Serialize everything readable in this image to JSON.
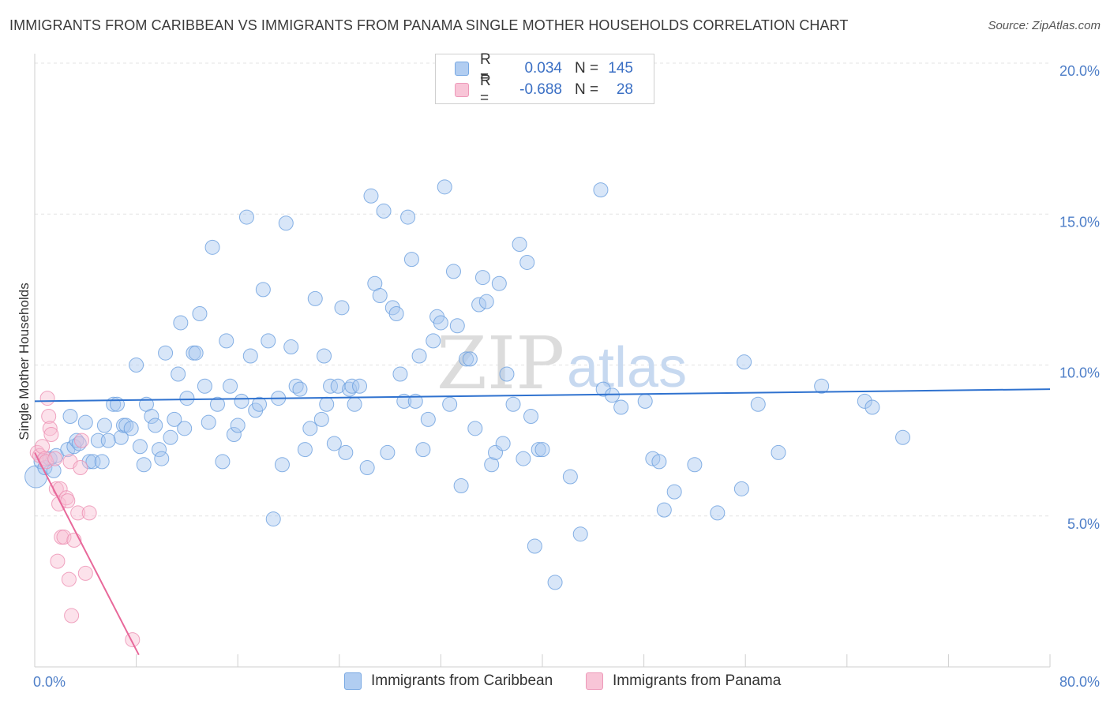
{
  "header": {
    "title": "IMMIGRANTS FROM CARIBBEAN VS IMMIGRANTS FROM PANAMA SINGLE MOTHER HOUSEHOLDS CORRELATION CHART",
    "source": "Source: ZipAtlas.com"
  },
  "legend": {
    "rows": [
      {
        "r_label": "R =",
        "r_value": "0.034",
        "n_label": "N =",
        "n_value": "145",
        "color": "#6a9fdf"
      },
      {
        "r_label": "R =",
        "r_value": "-0.688",
        "n_label": "N =",
        "n_value": "28",
        "color": "#f08cb0"
      }
    ],
    "series_names": [
      "Immigrants from Caribbean",
      "Immigrants from Panama"
    ]
  },
  "watermark": {
    "zip": "ZIP",
    "atlas": "atlas"
  },
  "colors": {
    "caribbean_fill": "#a9c8f0",
    "caribbean_stroke": "#6a9fdf",
    "caribbean_line": "#2f72cf",
    "panama_fill": "#f8bfd3",
    "panama_stroke": "#ec8fb2",
    "panama_line": "#e8689a",
    "axis_text": "#4f7fc8"
  },
  "chart_data": {
    "type": "scatter",
    "title": "IMMIGRANTS FROM CARIBBEAN VS IMMIGRANTS FROM PANAMA SINGLE MOTHER HOUSEHOLDS CORRELATION CHART",
    "xlabel": "",
    "ylabel": "Single Mother Households",
    "xlim": [
      0,
      80
    ],
    "ylim": [
      0,
      20
    ],
    "y_ticks": [
      5,
      10,
      15,
      20
    ],
    "y_tick_labels": [
      "5.0%",
      "10.0%",
      "15.0%",
      "20.0%"
    ],
    "x_tick_labels": [
      "0.0%",
      "80.0%"
    ],
    "legend_position": "top-center",
    "series": [
      {
        "name": "Immigrants from Caribbean",
        "trend": {
          "x": [
            0,
            80
          ],
          "y": [
            8.8,
            9.2
          ]
        },
        "points": [
          [
            0.1,
            6.3
          ],
          [
            0.5,
            6.8
          ],
          [
            0.8,
            6.6
          ],
          [
            1.2,
            6.9
          ],
          [
            1.5,
            6.5
          ],
          [
            1.7,
            7.0
          ],
          [
            2.6,
            7.2
          ],
          [
            2.8,
            8.3
          ],
          [
            3.1,
            7.3
          ],
          [
            3.3,
            7.5
          ],
          [
            3.5,
            7.4
          ],
          [
            4.0,
            8.1
          ],
          [
            4.3,
            6.8
          ],
          [
            4.6,
            6.8
          ],
          [
            5.0,
            7.5
          ],
          [
            5.3,
            6.8
          ],
          [
            5.5,
            8.0
          ],
          [
            5.8,
            7.5
          ],
          [
            6.2,
            8.7
          ],
          [
            6.5,
            8.7
          ],
          [
            6.8,
            7.6
          ],
          [
            7.0,
            8.0
          ],
          [
            7.2,
            8.0
          ],
          [
            7.6,
            7.9
          ],
          [
            8.0,
            10.0
          ],
          [
            8.3,
            7.3
          ],
          [
            8.6,
            6.7
          ],
          [
            8.8,
            8.7
          ],
          [
            9.2,
            8.3
          ],
          [
            9.5,
            8.0
          ],
          [
            9.8,
            7.2
          ],
          [
            10.0,
            6.9
          ],
          [
            10.3,
            10.4
          ],
          [
            10.7,
            7.6
          ],
          [
            11.0,
            8.2
          ],
          [
            11.3,
            9.7
          ],
          [
            11.5,
            11.4
          ],
          [
            11.8,
            7.9
          ],
          [
            12.0,
            8.9
          ],
          [
            12.5,
            10.4
          ],
          [
            12.7,
            10.4
          ],
          [
            13.0,
            11.7
          ],
          [
            13.4,
            9.3
          ],
          [
            13.7,
            8.1
          ],
          [
            14.0,
            13.9
          ],
          [
            14.4,
            8.7
          ],
          [
            14.8,
            6.8
          ],
          [
            15.1,
            10.8
          ],
          [
            15.4,
            9.3
          ],
          [
            15.7,
            7.7
          ],
          [
            16.0,
            8.0
          ],
          [
            16.3,
            8.8
          ],
          [
            16.7,
            14.9
          ],
          [
            17.0,
            10.3
          ],
          [
            17.4,
            8.5
          ],
          [
            17.7,
            8.7
          ],
          [
            18.0,
            12.5
          ],
          [
            18.4,
            10.8
          ],
          [
            18.8,
            4.9
          ],
          [
            19.2,
            8.9
          ],
          [
            19.5,
            6.7
          ],
          [
            19.8,
            14.7
          ],
          [
            20.2,
            10.6
          ],
          [
            20.6,
            9.3
          ],
          [
            20.9,
            9.2
          ],
          [
            21.3,
            7.2
          ],
          [
            21.7,
            7.9
          ],
          [
            22.1,
            12.2
          ],
          [
            22.6,
            8.2
          ],
          [
            22.8,
            10.3
          ],
          [
            23.0,
            8.7
          ],
          [
            23.3,
            9.3
          ],
          [
            23.6,
            7.4
          ],
          [
            23.9,
            9.3
          ],
          [
            24.2,
            11.9
          ],
          [
            24.5,
            7.1
          ],
          [
            24.8,
            9.2
          ],
          [
            25.0,
            9.3
          ],
          [
            25.2,
            8.7
          ],
          [
            25.6,
            9.3
          ],
          [
            26.2,
            6.6
          ],
          [
            26.5,
            15.6
          ],
          [
            26.8,
            12.7
          ],
          [
            27.2,
            12.3
          ],
          [
            27.5,
            15.1
          ],
          [
            27.8,
            7.1
          ],
          [
            28.2,
            11.9
          ],
          [
            28.5,
            11.7
          ],
          [
            28.8,
            9.7
          ],
          [
            29.1,
            8.8
          ],
          [
            29.4,
            14.9
          ],
          [
            29.7,
            13.5
          ],
          [
            30.0,
            8.8
          ],
          [
            30.3,
            10.3
          ],
          [
            30.6,
            7.2
          ],
          [
            31.0,
            8.2
          ],
          [
            31.4,
            10.8
          ],
          [
            31.7,
            11.6
          ],
          [
            32.0,
            11.4
          ],
          [
            32.3,
            15.9
          ],
          [
            32.7,
            8.7
          ],
          [
            33.0,
            13.1
          ],
          [
            33.3,
            11.3
          ],
          [
            33.6,
            6.0
          ],
          [
            34.0,
            10.2
          ],
          [
            34.3,
            10.2
          ],
          [
            34.7,
            7.9
          ],
          [
            35.0,
            12.0
          ],
          [
            35.3,
            12.9
          ],
          [
            35.6,
            12.1
          ],
          [
            36.0,
            6.7
          ],
          [
            36.3,
            7.1
          ],
          [
            36.6,
            12.7
          ],
          [
            36.9,
            7.4
          ],
          [
            37.2,
            9.7
          ],
          [
            37.7,
            8.7
          ],
          [
            38.2,
            14.0
          ],
          [
            38.5,
            6.9
          ],
          [
            38.8,
            13.4
          ],
          [
            39.1,
            8.3
          ],
          [
            39.4,
            4.0
          ],
          [
            39.7,
            7.2
          ],
          [
            40.0,
            7.2
          ],
          [
            41.0,
            2.8
          ],
          [
            42.2,
            6.3
          ],
          [
            43.0,
            4.4
          ],
          [
            44.6,
            15.8
          ],
          [
            44.8,
            9.2
          ],
          [
            45.5,
            9.0
          ],
          [
            46.2,
            8.6
          ],
          [
            48.1,
            8.8
          ],
          [
            48.7,
            6.9
          ],
          [
            49.2,
            6.8
          ],
          [
            49.6,
            5.2
          ],
          [
            50.4,
            5.8
          ],
          [
            52.0,
            6.7
          ],
          [
            53.8,
            5.1
          ],
          [
            55.7,
            5.9
          ],
          [
            55.9,
            10.1
          ],
          [
            57.0,
            8.7
          ],
          [
            58.6,
            7.1
          ],
          [
            62.0,
            9.3
          ],
          [
            65.4,
            8.8
          ],
          [
            66.0,
            8.6
          ],
          [
            68.4,
            7.6
          ]
        ]
      },
      {
        "name": "Immigrants from Panama",
        "trend": {
          "x": [
            0,
            8.2
          ],
          "y": [
            7.1,
            0.4
          ]
        },
        "points": [
          [
            0.2,
            7.1
          ],
          [
            0.4,
            7.0
          ],
          [
            0.6,
            7.3
          ],
          [
            0.8,
            6.9
          ],
          [
            0.9,
            6.8
          ],
          [
            1.0,
            8.9
          ],
          [
            1.1,
            8.3
          ],
          [
            1.2,
            7.9
          ],
          [
            1.3,
            7.7
          ],
          [
            1.6,
            6.9
          ],
          [
            1.7,
            5.9
          ],
          [
            1.8,
            3.5
          ],
          [
            1.9,
            5.4
          ],
          [
            2.0,
            5.9
          ],
          [
            2.1,
            4.3
          ],
          [
            2.3,
            4.3
          ],
          [
            2.5,
            5.6
          ],
          [
            2.6,
            5.5
          ],
          [
            2.7,
            2.9
          ],
          [
            2.8,
            6.8
          ],
          [
            2.9,
            1.7
          ],
          [
            3.1,
            4.2
          ],
          [
            3.4,
            5.1
          ],
          [
            3.6,
            6.6
          ],
          [
            3.7,
            7.5
          ],
          [
            4.0,
            3.1
          ],
          [
            4.3,
            5.1
          ],
          [
            7.7,
            0.9
          ]
        ]
      }
    ]
  }
}
